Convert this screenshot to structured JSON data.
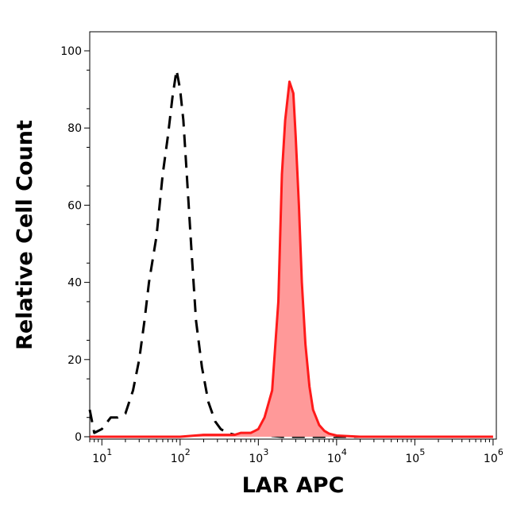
{
  "chart_data": {
    "type": "area",
    "xlabel": "LAR APC",
    "ylabel": "Relative Cell Count",
    "x_scale": "log",
    "xlim": [
      7,
      1100000
    ],
    "ylim": [
      0,
      105
    ],
    "x_ticks": [
      {
        "value": 10,
        "base": "10",
        "exp": "1"
      },
      {
        "value": 100,
        "base": "10",
        "exp": "2"
      },
      {
        "value": 1000,
        "base": "10",
        "exp": "3"
      },
      {
        "value": 10000,
        "base": "10",
        "exp": "4"
      },
      {
        "value": 100000,
        "base": "10",
        "exp": "5"
      },
      {
        "value": 1000000,
        "base": "10",
        "exp": "6"
      }
    ],
    "y_ticks": [
      0,
      20,
      40,
      60,
      80,
      100
    ],
    "grid": false,
    "series": [
      {
        "style": "dashed",
        "color": "#000000",
        "fill": "none",
        "x": [
          7,
          8,
          10,
          13,
          16,
          20,
          25,
          30,
          35,
          40,
          50,
          60,
          70,
          80,
          90,
          100,
          110,
          120,
          140,
          160,
          190,
          230,
          280,
          330,
          400,
          500,
          600,
          800,
          1000,
          2000,
          5000,
          20000,
          100000,
          1000000
        ],
        "y": [
          7,
          1,
          2,
          5,
          5,
          6,
          12,
          20,
          30,
          40,
          52,
          68,
          78,
          88,
          95,
          90,
          82,
          70,
          48,
          30,
          18,
          9,
          4,
          2,
          1,
          0.5,
          0.3,
          0.5,
          0.5,
          0,
          0,
          0,
          0,
          0
        ]
      },
      {
        "style": "solid",
        "color": "#ff1a1a",
        "fill": "#ff9999",
        "x": [
          7,
          50,
          100,
          200,
          300,
          400,
          500,
          600,
          700,
          800,
          900,
          1000,
          1200,
          1500,
          1800,
          2000,
          2200,
          2500,
          2800,
          3000,
          3300,
          3600,
          4000,
          4500,
          5000,
          6000,
          7000,
          8000,
          10000,
          20000,
          100000,
          1000000
        ],
        "y": [
          0,
          0,
          0,
          0.5,
          0.5,
          0.5,
          0.5,
          1,
          1,
          1,
          1.5,
          2,
          5,
          12,
          35,
          68,
          82,
          92,
          89,
          78,
          60,
          40,
          24,
          13,
          7,
          3,
          1.5,
          0.8,
          0.3,
          0,
          0,
          0
        ]
      }
    ]
  }
}
